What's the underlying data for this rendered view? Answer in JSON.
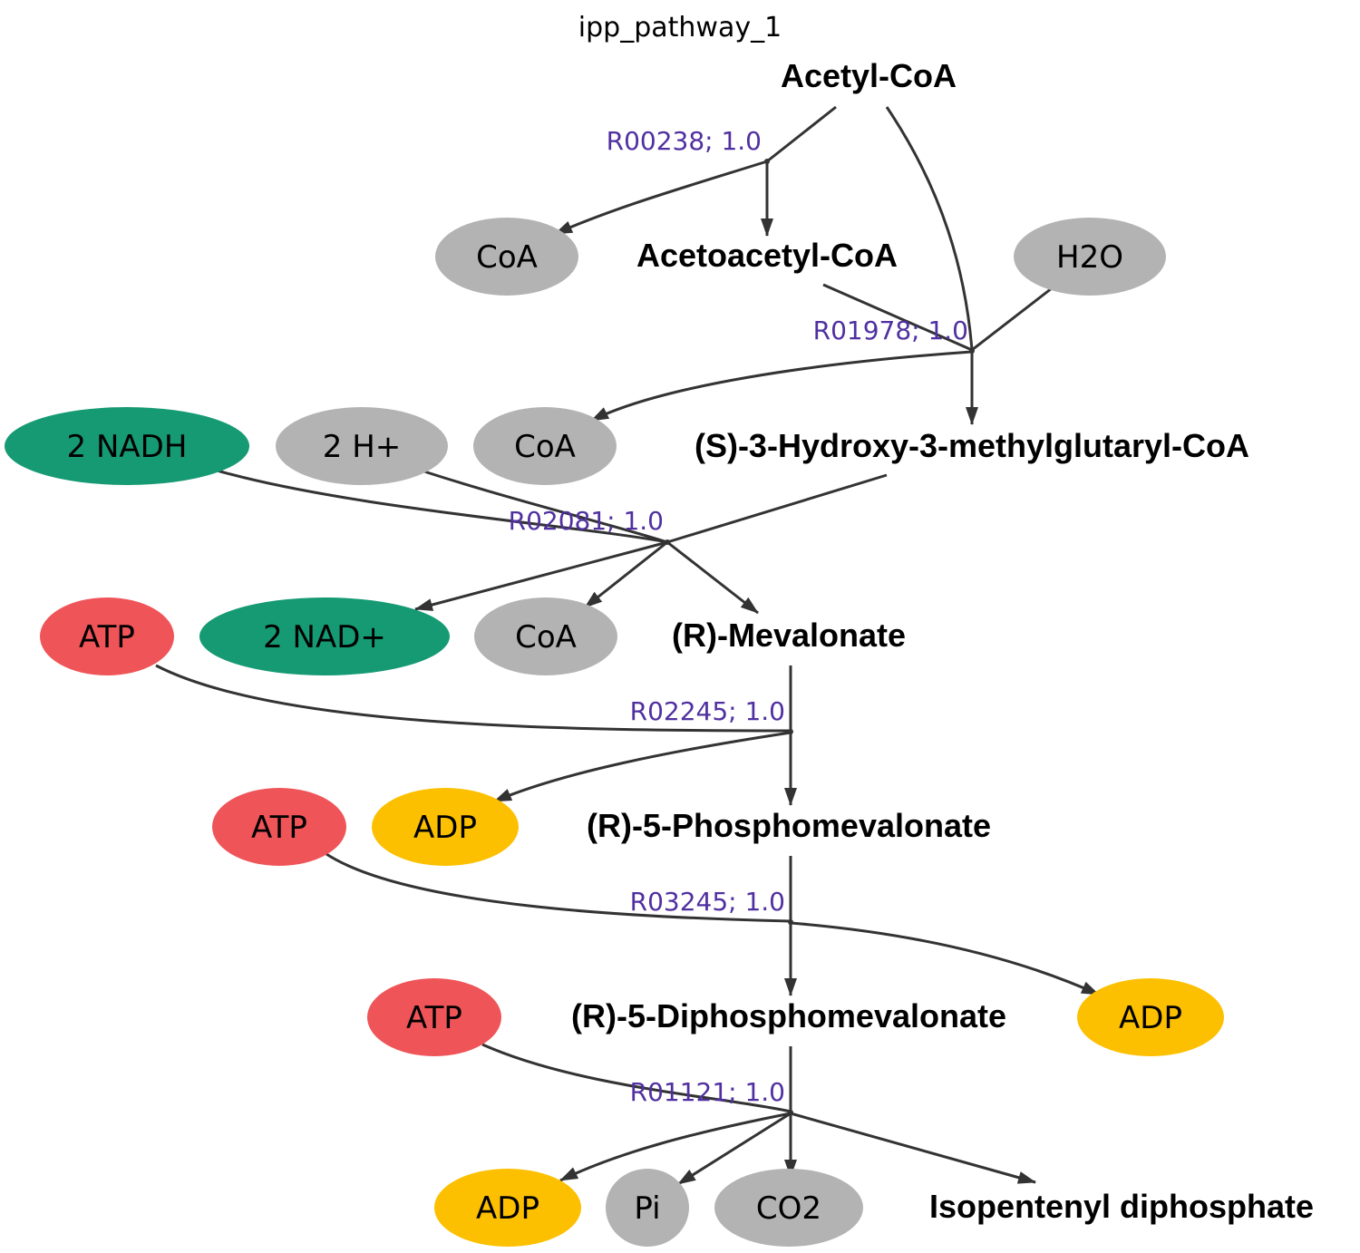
{
  "title": "ipp_pathway_1",
  "colors": {
    "gray": "#b3b3b3",
    "green": "#159a73",
    "red": "#ef5458",
    "yellow": "#fcc000",
    "reaction_label": "#5030a0",
    "edge": "#333333"
  },
  "main_compounds": {
    "acetyl_coa": "Acetyl-CoA",
    "acetoacetyl_coa": "Acetoacetyl-CoA",
    "hmg_coa": "(S)-3-Hydroxy-3-methylglutaryl-CoA",
    "mevalonate": "(R)-Mevalonate",
    "phosphomevalonate": "(R)-5-Phosphomevalonate",
    "diphosphomevalonate": "(R)-5-Diphosphomevalonate",
    "ipp": "Isopentenyl diphosphate"
  },
  "side_compounds": {
    "coa_1": {
      "label": "CoA",
      "color": "#b3b3b3"
    },
    "h2o": {
      "label": "H2O",
      "color": "#b3b3b3"
    },
    "nadh": {
      "label": "2 NADH",
      "color": "#159a73"
    },
    "h_plus": {
      "label": "2 H+",
      "color": "#b3b3b3"
    },
    "coa_2": {
      "label": "CoA",
      "color": "#b3b3b3"
    },
    "atp_1": {
      "label": "ATP",
      "color": "#ef5458"
    },
    "nad_plus": {
      "label": "2 NAD+",
      "color": "#159a73"
    },
    "coa_3": {
      "label": "CoA",
      "color": "#b3b3b3"
    },
    "atp_2": {
      "label": "ATP",
      "color": "#ef5458"
    },
    "adp_1": {
      "label": "ADP",
      "color": "#fcc000"
    },
    "adp_2": {
      "label": "ADP",
      "color": "#fcc000"
    },
    "atp_3": {
      "label": "ATP",
      "color": "#ef5458"
    },
    "adp_3": {
      "label": "ADP",
      "color": "#fcc000"
    },
    "pi": {
      "label": "Pi",
      "color": "#b3b3b3"
    },
    "co2": {
      "label": "CO2",
      "color": "#b3b3b3"
    }
  },
  "reactions": {
    "r1": "R00238; 1.0",
    "r2": "R01978; 1.0",
    "r3": "R02081; 1.0",
    "r4": "R02245; 1.0",
    "r5": "R03245; 1.0",
    "r6": "R01121; 1.0"
  }
}
